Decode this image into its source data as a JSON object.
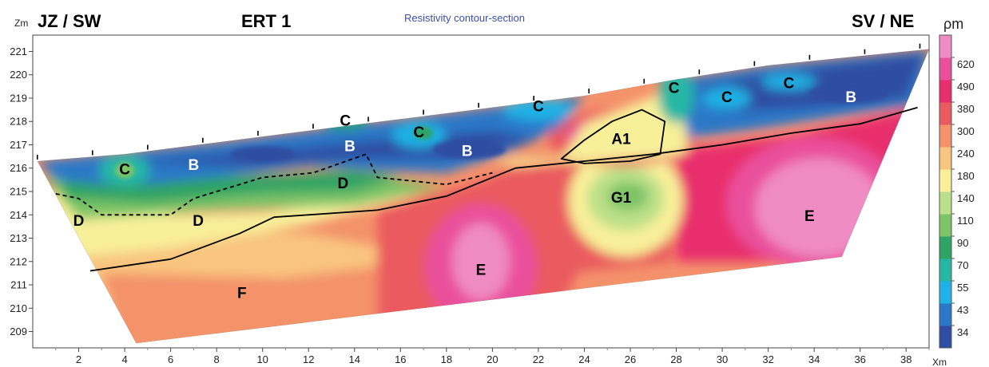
{
  "header": {
    "left_orientation": "JZ / SW",
    "profile_name": "ERT 1",
    "section_title": "Resistivity contour-section",
    "right_orientation": "SV / NE"
  },
  "chart_data": {
    "type": "heatmap",
    "title": "Resistivity contour-section",
    "ylabel": "Zm",
    "xlabel": "Xm",
    "colorbar_unit": "ρm",
    "xlim": [
      0,
      39
    ],
    "ylim": [
      208.3,
      221.7
    ],
    "xticks": [
      2,
      4,
      6,
      8,
      10,
      12,
      14,
      16,
      18,
      20,
      22,
      24,
      26,
      28,
      30,
      32,
      34,
      36,
      38
    ],
    "yticks": [
      209,
      210,
      211,
      212,
      213,
      214,
      215,
      216,
      217,
      218,
      219,
      220,
      221
    ],
    "colorbar": {
      "levels": [
        34,
        43,
        55,
        70,
        90,
        110,
        140,
        180,
        240,
        300,
        380,
        490,
        620
      ],
      "colors": [
        "#2f4da2",
        "#2b78c8",
        "#1fb2e6",
        "#25b7a4",
        "#2fa464",
        "#7dc466",
        "#bbe089",
        "#f8f099",
        "#f9c57f",
        "#f4926a",
        "#ea5a5e",
        "#e82d6c",
        "#ea4f9c",
        "#ef8cc3"
      ]
    },
    "section_outline": {
      "top_surface": [
        [
          0.2,
          216.3
        ],
        [
          4,
          216.6
        ],
        [
          8,
          217.1
        ],
        [
          12,
          217.6
        ],
        [
          16,
          218.1
        ],
        [
          20,
          218.6
        ],
        [
          24,
          219.1
        ],
        [
          28,
          219.8
        ],
        [
          32,
          220.4
        ],
        [
          36,
          220.8
        ],
        [
          39,
          221.1
        ]
      ],
      "bottom": [
        [
          4.5,
          208.5
        ],
        [
          39,
          212.2
        ]
      ],
      "left_edge": [
        [
          0.2,
          216.3
        ],
        [
          4.5,
          208.5
        ]
      ],
      "right_edge": [
        [
          39,
          221.1
        ],
        [
          35.2,
          212.2
        ]
      ]
    },
    "electrodes_x": [
      0.2,
      2.6,
      5,
      7.4,
      9.8,
      12.2,
      14.6,
      17,
      19.4,
      21.8,
      24.2,
      26.6,
      29,
      31.4,
      33.8,
      36.2,
      38.6
    ],
    "boundaries": [
      {
        "name": "solid-boundary",
        "style": "solid",
        "points": [
          [
            2.5,
            211.6
          ],
          [
            6,
            212.1
          ],
          [
            9,
            213.2
          ],
          [
            10.5,
            213.9
          ],
          [
            12,
            214
          ],
          [
            15,
            214.2
          ],
          [
            18,
            214.8
          ],
          [
            21,
            216
          ],
          [
            24,
            216.3
          ],
          [
            27,
            216.6
          ],
          [
            30,
            217
          ],
          [
            33,
            217.5
          ],
          [
            36,
            217.9
          ],
          [
            38.5,
            218.6
          ]
        ]
      },
      {
        "name": "dashed-boundary",
        "style": "dashed",
        "points": [
          [
            1,
            214.9
          ],
          [
            2,
            214.7
          ],
          [
            3,
            214
          ],
          [
            6,
            214
          ],
          [
            7,
            214.7
          ],
          [
            10,
            215.6
          ],
          [
            12.2,
            215.8
          ],
          [
            14.5,
            216.6
          ],
          [
            15,
            215.6
          ],
          [
            18,
            215.3
          ],
          [
            20,
            215.8
          ]
        ]
      },
      {
        "name": "anomaly-a1-outline",
        "style": "solid",
        "points": [
          [
            23,
            216.4
          ],
          [
            24,
            217.2
          ],
          [
            25.2,
            218
          ],
          [
            26.5,
            218.5
          ],
          [
            27.5,
            218
          ],
          [
            27.3,
            216.6
          ],
          [
            26,
            216.3
          ],
          [
            24,
            216.2
          ],
          [
            23,
            216.4
          ]
        ]
      }
    ],
    "zones": [
      {
        "label": "C",
        "x": 4,
        "y": 215.9,
        "color": "#000000"
      },
      {
        "label": "B",
        "x": 7,
        "y": 216.1,
        "color": "#ffffff"
      },
      {
        "label": "D",
        "x": 2,
        "y": 213.7,
        "color": "#000000"
      },
      {
        "label": "D",
        "x": 7.2,
        "y": 213.7,
        "color": "#000000"
      },
      {
        "label": "C",
        "x": 13.6,
        "y": 218,
        "color": "#000000"
      },
      {
        "label": "B",
        "x": 13.8,
        "y": 216.9,
        "color": "#ffffff"
      },
      {
        "label": "D",
        "x": 13.5,
        "y": 215.3,
        "color": "#000000"
      },
      {
        "label": "C",
        "x": 16.8,
        "y": 217.5,
        "color": "#000000"
      },
      {
        "label": "B",
        "x": 18.9,
        "y": 216.7,
        "color": "#ffffff"
      },
      {
        "label": "C",
        "x": 22,
        "y": 218.6,
        "color": "#000000"
      },
      {
        "label": "A1",
        "x": 25.6,
        "y": 217.2,
        "color": "#000000"
      },
      {
        "label": "C",
        "x": 27.9,
        "y": 219.4,
        "color": "#000000"
      },
      {
        "label": "C",
        "x": 30.2,
        "y": 219,
        "color": "#000000"
      },
      {
        "label": "C",
        "x": 32.9,
        "y": 219.6,
        "color": "#000000"
      },
      {
        "label": "B",
        "x": 35.6,
        "y": 219,
        "color": "#ffffff"
      },
      {
        "label": "G1",
        "x": 25.6,
        "y": 214.7,
        "color": "#000000"
      },
      {
        "label": "E",
        "x": 33.8,
        "y": 213.9,
        "color": "#000000"
      },
      {
        "label": "E",
        "x": 19.5,
        "y": 211.6,
        "color": "#000000"
      },
      {
        "label": "F",
        "x": 9.1,
        "y": 210.6,
        "color": "#000000"
      }
    ]
  }
}
